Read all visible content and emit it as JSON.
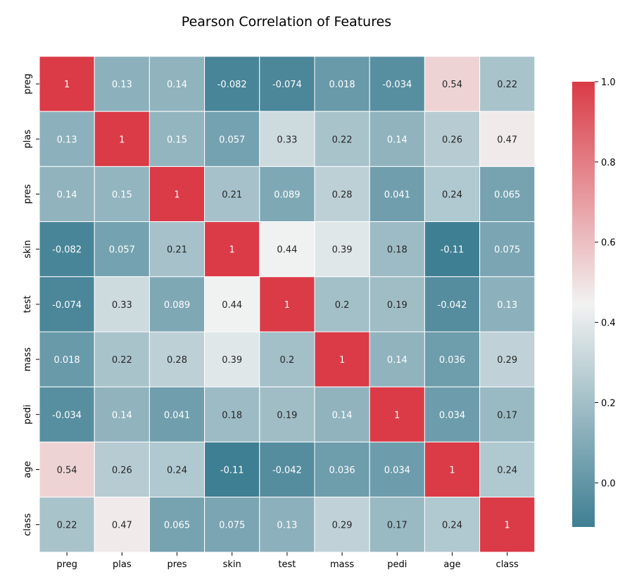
{
  "chart_data": {
    "type": "heatmap",
    "title": "Pearson Correlation of Features",
    "xlabel": "",
    "ylabel": "",
    "x_labels": [
      "preg",
      "plas",
      "pres",
      "skin",
      "test",
      "mass",
      "pedi",
      "age",
      "class"
    ],
    "y_labels": [
      "preg",
      "plas",
      "pres",
      "skin",
      "test",
      "mass",
      "pedi",
      "age",
      "class"
    ],
    "values": [
      [
        1,
        0.13,
        0.14,
        -0.082,
        -0.074,
        0.018,
        -0.034,
        0.54,
        0.22
      ],
      [
        0.13,
        1,
        0.15,
        0.057,
        0.33,
        0.22,
        0.14,
        0.26,
        0.47
      ],
      [
        0.14,
        0.15,
        1,
        0.21,
        0.089,
        0.28,
        0.041,
        0.24,
        0.065
      ],
      [
        -0.082,
        0.057,
        0.21,
        1,
        0.44,
        0.39,
        0.18,
        -0.11,
        0.075
      ],
      [
        -0.074,
        0.33,
        0.089,
        0.44,
        1,
        0.2,
        0.19,
        -0.042,
        0.13
      ],
      [
        0.018,
        0.22,
        0.28,
        0.39,
        0.2,
        1,
        0.14,
        0.036,
        0.29
      ],
      [
        -0.034,
        0.14,
        0.041,
        0.18,
        0.19,
        0.14,
        1,
        0.034,
        0.17
      ],
      [
        0.54,
        0.26,
        0.24,
        -0.11,
        -0.042,
        0.036,
        0.034,
        1,
        0.24
      ],
      [
        0.22,
        0.47,
        0.065,
        0.075,
        0.13,
        0.29,
        0.17,
        0.24,
        1
      ]
    ],
    "colorbar": {
      "vmin": -0.11,
      "vmax": 1.0,
      "ticks": [
        "0.0",
        "0.2",
        "0.4",
        "0.6",
        "0.8",
        "1.0"
      ],
      "colors": [
        "#3f7f93",
        "#f2f2f2",
        "#da3b46"
      ]
    },
    "grid": false,
    "annotations": true
  }
}
